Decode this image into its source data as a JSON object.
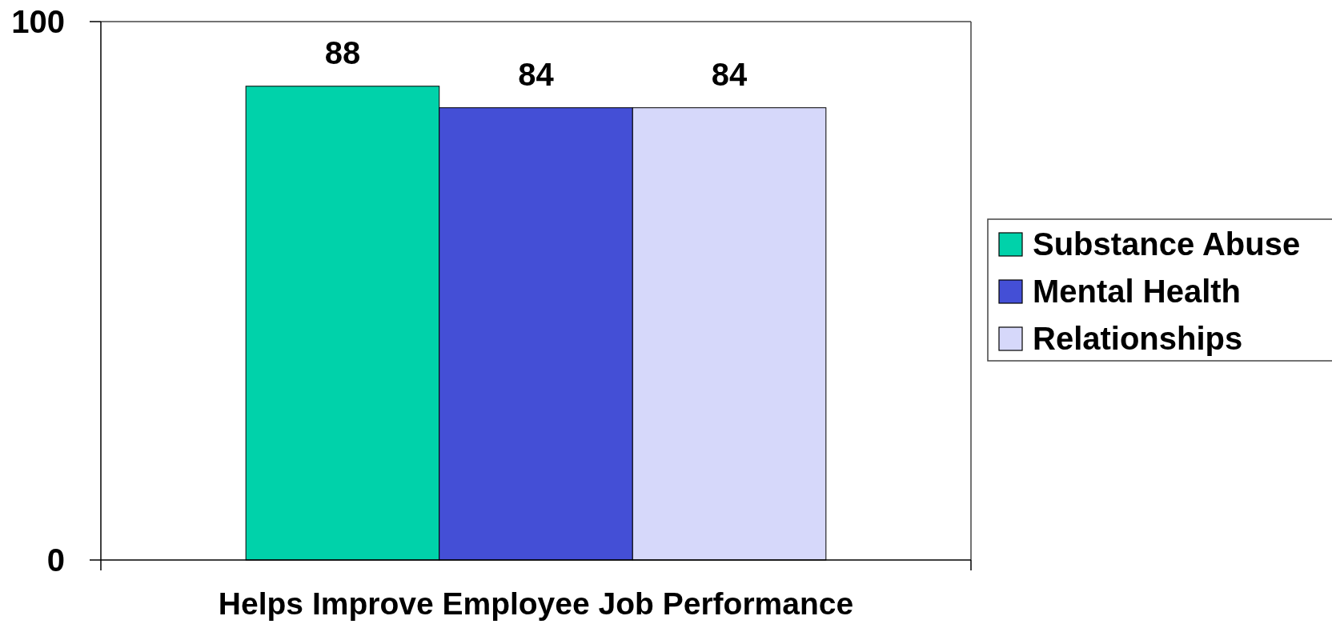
{
  "chart_data": {
    "type": "bar",
    "categories": [
      "Helps Improve Employee Job Performance"
    ],
    "series": [
      {
        "name": "Substance Abuse",
        "color": "#00d2aa",
        "values": [
          88
        ]
      },
      {
        "name": "Mental Health",
        "color": "#444fd6",
        "values": [
          84
        ]
      },
      {
        "name": "Relationships",
        "color": "#d6d8fa",
        "values": [
          84
        ]
      }
    ],
    "ylim": [
      0,
      100
    ],
    "yticks": [
      0,
      100
    ],
    "data_labels": true,
    "legend": "right"
  }
}
